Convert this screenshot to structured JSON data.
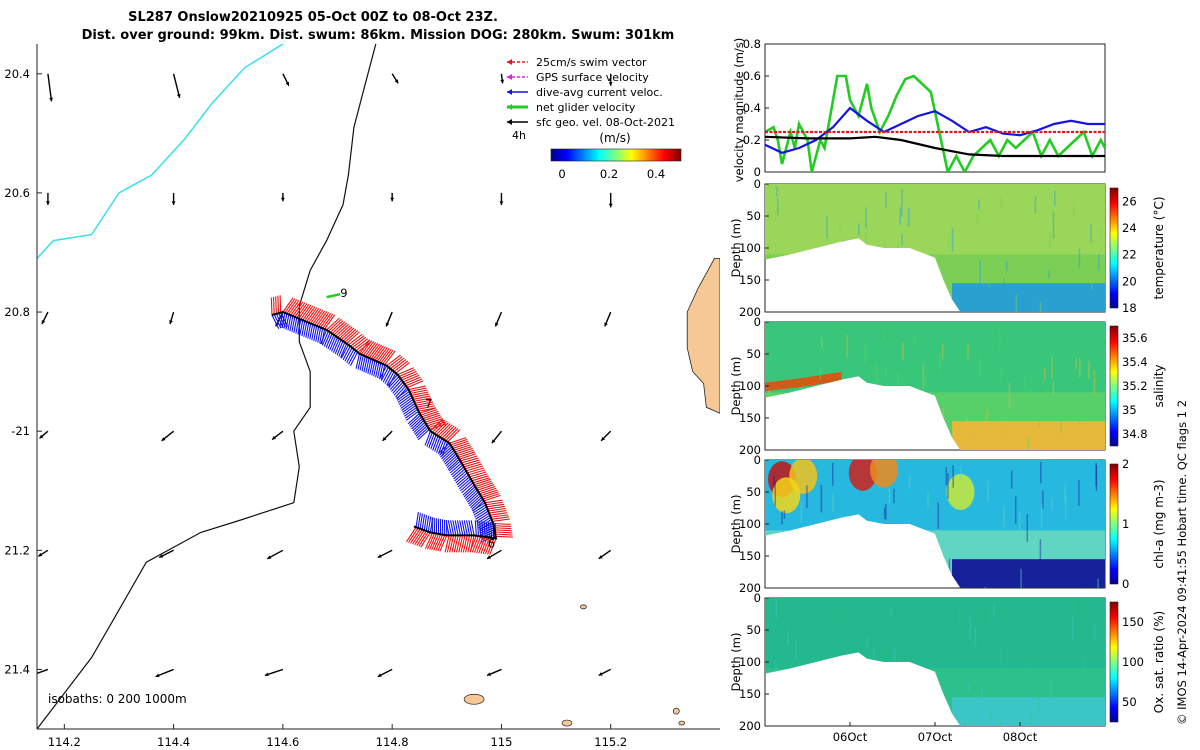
{
  "title": {
    "line1": "SL287 Onslow20210925 05-Oct 00Z to 08-Oct 23Z.",
    "line2": "Dist. over ground: 99km. Dist. swum: 86km. Mission DOG: 280km. Swum: 301km"
  },
  "credit": "© IMOS 14-Apr-2024 09:41:55 Hobart time. QC flags 1  2",
  "chart_data": [
    {
      "type": "scatter",
      "name": "track map",
      "xlim": [
        114.15,
        115.4
      ],
      "ylim": [
        -21.5,
        -20.35
      ],
      "xticks": [
        114.2,
        114.4,
        114.6,
        114.8,
        115,
        115.2
      ],
      "xtick_labels": [
        "114.2",
        "114.4",
        "114.6",
        "114.8",
        "115",
        "115.2"
      ],
      "yticks": [
        -20.4,
        -20.6,
        -20.8,
        -21,
        -21.2,
        -21.4
      ],
      "ytick_labels": [
        "20.4",
        "20.6",
        "20.8",
        "-21",
        "21.2",
        "21.4"
      ],
      "legend": {
        "items": [
          {
            "label": "25cm/s swim vector",
            "color": "#e8141c"
          },
          {
            "label": "GPS surface velocity",
            "color": "#e022e0"
          },
          {
            "label": "dive-avg current veloc.",
            "color": "#1414e6"
          },
          {
            "label": "net glider velocity",
            "color": "#22cc22"
          },
          {
            "label": "sfc geo. vel. 08-Oct-2021",
            "color": "#000000"
          }
        ],
        "note": "4h",
        "colorbar_label": "(m/s)",
        "colorbar_ticks": [
          "0",
          "0.2",
          "0.4"
        ]
      },
      "isobath_note": "isobaths: 0   200  1000m",
      "track": [
        [
          114.58,
          -20.805
        ],
        [
          114.6,
          -20.8
        ],
        [
          114.64,
          -20.815
        ],
        [
          114.68,
          -20.83
        ],
        [
          114.72,
          -20.855
        ],
        [
          114.74,
          -20.87
        ],
        [
          114.765,
          -20.88
        ],
        [
          114.79,
          -20.89
        ],
        [
          114.81,
          -20.905
        ],
        [
          114.83,
          -20.93
        ],
        [
          114.85,
          -20.97
        ],
        [
          114.87,
          -21.0
        ],
        [
          114.905,
          -21.02
        ],
        [
          114.925,
          -21.05
        ],
        [
          114.95,
          -21.09
        ],
        [
          114.97,
          -21.12
        ],
        [
          114.985,
          -21.155
        ],
        [
          114.99,
          -21.18
        ],
        [
          114.95,
          -21.175
        ],
        [
          114.9,
          -21.175
        ],
        [
          114.87,
          -21.17
        ],
        [
          114.84,
          -21.16
        ]
      ],
      "track_labels": [
        {
          "text": "9",
          "lon": 114.705,
          "lat": -20.775
        },
        {
          "text": "7",
          "lon": 114.86,
          "lat": -20.96
        },
        {
          "text": "6",
          "lon": 114.975,
          "lat": -21.195
        }
      ],
      "grid_vectors": [
        {
          "lon": 114.17,
          "lat": -20.4,
          "u": 0.03,
          "v": -0.23
        },
        {
          "lon": 114.4,
          "lat": -20.4,
          "u": 0.05,
          "v": -0.2
        },
        {
          "lon": 114.6,
          "lat": -20.4,
          "u": 0.05,
          "v": -0.1
        },
        {
          "lon": 114.8,
          "lat": -20.4,
          "u": 0.05,
          "v": -0.08
        },
        {
          "lon": 115,
          "lat": -20.4,
          "u": 0.01,
          "v": -0.08
        },
        {
          "lon": 115.2,
          "lat": -20.4,
          "u": 0.0,
          "v": -0.1
        },
        {
          "lon": 114.17,
          "lat": -20.6,
          "u": 0.0,
          "v": -0.1
        },
        {
          "lon": 114.4,
          "lat": -20.6,
          "u": 0.0,
          "v": -0.1
        },
        {
          "lon": 114.6,
          "lat": -20.6,
          "u": 0.0,
          "v": -0.07
        },
        {
          "lon": 114.8,
          "lat": -20.6,
          "u": 0.0,
          "v": -0.07
        },
        {
          "lon": 115,
          "lat": -20.6,
          "u": 0.0,
          "v": -0.1
        },
        {
          "lon": 115.2,
          "lat": -20.6,
          "u": 0.0,
          "v": -0.12
        },
        {
          "lon": 114.17,
          "lat": -20.8,
          "u": -0.05,
          "v": -0.1
        },
        {
          "lon": 114.4,
          "lat": -20.8,
          "u": -0.03,
          "v": -0.1
        },
        {
          "lon": 114.6,
          "lat": -20.8,
          "u": -0.06,
          "v": -0.12
        },
        {
          "lon": 114.8,
          "lat": -20.8,
          "u": -0.05,
          "v": -0.12
        },
        {
          "lon": 115,
          "lat": -20.8,
          "u": -0.05,
          "v": -0.12
        },
        {
          "lon": 115.2,
          "lat": -20.8,
          "u": -0.05,
          "v": -0.12
        },
        {
          "lon": 114.17,
          "lat": -21.0,
          "u": -0.07,
          "v": -0.06
        },
        {
          "lon": 114.4,
          "lat": -21.0,
          "u": -0.1,
          "v": -0.08
        },
        {
          "lon": 114.6,
          "lat": -21.0,
          "u": -0.09,
          "v": -0.07
        },
        {
          "lon": 114.8,
          "lat": -21.0,
          "u": -0.08,
          "v": -0.08
        },
        {
          "lon": 115,
          "lat": -21.0,
          "u": -0.08,
          "v": -0.1
        },
        {
          "lon": 115.2,
          "lat": -21.0,
          "u": -0.08,
          "v": -0.08
        },
        {
          "lon": 114.17,
          "lat": -21.2,
          "u": -0.08,
          "v": -0.05
        },
        {
          "lon": 114.4,
          "lat": -21.2,
          "u": -0.12,
          "v": -0.06
        },
        {
          "lon": 114.6,
          "lat": -21.2,
          "u": -0.13,
          "v": -0.07
        },
        {
          "lon": 114.8,
          "lat": -21.2,
          "u": -0.12,
          "v": -0.06
        },
        {
          "lon": 115,
          "lat": -21.2,
          "u": -0.12,
          "v": -0.07
        },
        {
          "lon": 115.2,
          "lat": -21.2,
          "u": -0.1,
          "v": -0.07
        },
        {
          "lon": 114.17,
          "lat": -21.4,
          "u": -0.14,
          "v": -0.05
        },
        {
          "lon": 114.4,
          "lat": -21.4,
          "u": -0.15,
          "v": -0.06
        },
        {
          "lon": 114.6,
          "lat": -21.4,
          "u": -0.15,
          "v": -0.05
        },
        {
          "lon": 114.8,
          "lat": -21.4,
          "u": -0.12,
          "v": -0.06
        },
        {
          "lon": 115,
          "lat": -21.4,
          "u": -0.12,
          "v": -0.05
        },
        {
          "lon": 115.2,
          "lat": -21.4,
          "u": -0.1,
          "v": -0.05
        }
      ],
      "isobath_0": [
        [
          115.34,
          -20.8
        ],
        [
          115.36,
          -20.76
        ],
        [
          115.39,
          -20.71
        ],
        [
          115.4,
          -20.71
        ],
        [
          115.4,
          -20.97
        ],
        [
          115.375,
          -20.96
        ],
        [
          115.37,
          -20.92
        ],
        [
          115.35,
          -20.9
        ],
        [
          115.34,
          -20.86
        ]
      ],
      "isobath_200": [
        [
          114.15,
          -20.71
        ],
        [
          114.18,
          -20.68
        ],
        [
          114.25,
          -20.67
        ],
        [
          114.3,
          -20.6
        ],
        [
          114.36,
          -20.57
        ],
        [
          114.42,
          -20.51
        ],
        [
          114.47,
          -20.45
        ],
        [
          114.53,
          -20.39
        ],
        [
          114.6,
          -20.35
        ]
      ],
      "isobath_1000": [
        [
          114.77,
          -20.35
        ],
        [
          114.75,
          -20.42
        ],
        [
          114.73,
          -20.49
        ],
        [
          114.72,
          -20.57
        ],
        [
          114.71,
          -20.62
        ],
        [
          114.68,
          -20.68
        ],
        [
          114.65,
          -20.73
        ],
        [
          114.63,
          -20.79
        ],
        [
          114.63,
          -20.85
        ],
        [
          114.65,
          -20.9
        ],
        [
          114.65,
          -20.96
        ],
        [
          114.62,
          -21.0
        ],
        [
          114.63,
          -21.06
        ],
        [
          114.62,
          -21.12
        ],
        [
          114.52,
          -21.15
        ],
        [
          114.45,
          -21.17
        ],
        [
          114.35,
          -21.22
        ],
        [
          114.3,
          -21.3
        ],
        [
          114.25,
          -21.38
        ],
        [
          114.2,
          -21.44
        ],
        [
          114.15,
          -21.5
        ]
      ]
    },
    {
      "type": "line",
      "name": "velocity magnitude",
      "ylabel": "velocity magnitude (m/s)",
      "ylim": [
        0,
        0.8
      ],
      "yticks": [
        0,
        0.2,
        0.4,
        0.6,
        0.8
      ],
      "xlim": [
        0,
        4
      ],
      "series": [
        {
          "name": "net glider velocity",
          "color": "#22cc22",
          "x": [
            0,
            0.1,
            0.15,
            0.2,
            0.3,
            0.35,
            0.4,
            0.5,
            0.55,
            0.65,
            0.7,
            0.75,
            0.85,
            0.95,
            1.0,
            1.1,
            1.2,
            1.25,
            1.35,
            1.45,
            1.55,
            1.65,
            1.75,
            1.85,
            1.95,
            2.05,
            2.15,
            2.25,
            2.3,
            2.35,
            2.45,
            2.55,
            2.65,
            2.75,
            2.85,
            2.95,
            3.05,
            3.15,
            3.25,
            3.35,
            3.45,
            3.55,
            3.65,
            3.75,
            3.85,
            3.95,
            4.0
          ],
          "y": [
            0.25,
            0.28,
            0.2,
            0.05,
            0.25,
            0.15,
            0.3,
            0.2,
            0.0,
            0.2,
            0.15,
            0.3,
            0.6,
            0.6,
            0.45,
            0.35,
            0.55,
            0.4,
            0.25,
            0.35,
            0.48,
            0.58,
            0.6,
            0.55,
            0.5,
            0.25,
            0.0,
            0.1,
            0.05,
            0.0,
            0.1,
            0.15,
            0.2,
            0.1,
            0.2,
            0.15,
            0.2,
            0.25,
            0.1,
            0.2,
            0.1,
            0.15,
            0.2,
            0.25,
            0.1,
            0.2,
            0.15
          ]
        },
        {
          "name": "dive-avg current veloc.",
          "color": "#1414e6",
          "x": [
            0,
            0.2,
            0.4,
            0.6,
            0.8,
            1.0,
            1.2,
            1.4,
            1.6,
            1.8,
            2.0,
            2.2,
            2.4,
            2.6,
            2.8,
            3.0,
            3.2,
            3.4,
            3.6,
            3.8,
            4.0
          ],
          "y": [
            0.17,
            0.12,
            0.15,
            0.2,
            0.28,
            0.4,
            0.32,
            0.25,
            0.3,
            0.35,
            0.38,
            0.32,
            0.25,
            0.28,
            0.24,
            0.23,
            0.26,
            0.3,
            0.32,
            0.3,
            0.3
          ]
        },
        {
          "name": "25cm/s swim vector",
          "color": "#e8141c",
          "x": [
            0,
            4
          ],
          "y": [
            0.25,
            0.25
          ]
        },
        {
          "name": "sfc geo. vel. 08-Oct-2021",
          "color": "#000000",
          "x": [
            0,
            0.5,
            1.0,
            1.3,
            1.6,
            2.0,
            2.4,
            2.8,
            3.2,
            3.6,
            4.0
          ],
          "y": [
            0.22,
            0.21,
            0.21,
            0.22,
            0.2,
            0.15,
            0.11,
            0.1,
            0.1,
            0.1,
            0.1
          ]
        }
      ]
    },
    {
      "type": "heatmap",
      "name": "temperature section",
      "ylabel": "Depth (m)",
      "ylim": [
        200,
        0
      ],
      "yticks": [
        0,
        50,
        100,
        150,
        200
      ],
      "colorbar_label": "temperature (°C)",
      "cmin": 18,
      "cmax": 27,
      "colorbar_ticks": [
        18,
        20,
        22,
        24,
        26
      ],
      "bottom_profile": {
        "x": [
          0,
          0.3,
          0.6,
          0.9,
          1.1,
          1.2,
          1.4,
          1.7,
          2.0,
          2.1,
          2.2,
          2.3,
          4.0
        ],
        "depth": [
          118,
          110,
          100,
          90,
          85,
          95,
          100,
          100,
          115,
          150,
          180,
          200,
          200
        ]
      },
      "summary": "near-uniform 22-23 °C in the upper 100 m, cooler 19-21 °C below 150 m"
    },
    {
      "type": "heatmap",
      "name": "salinity section",
      "ylabel": "Depth (m)",
      "ylim": [
        200,
        0
      ],
      "yticks": [
        0,
        50,
        100,
        150,
        200
      ],
      "colorbar_label": "salinity",
      "cmin": 34.7,
      "cmax": 35.7,
      "colorbar_ticks": [
        34.8,
        35,
        35.2,
        35.4,
        35.6
      ],
      "summary": "35.2-35.4 in mixed layer, saltier 35.5-35.6 near 100 m on the shelf"
    },
    {
      "type": "heatmap",
      "name": "chl-a section",
      "ylabel": "Depth (m)",
      "ylim": [
        200,
        0
      ],
      "yticks": [
        0,
        50,
        100,
        150,
        200
      ],
      "colorbar_label": "chl-a (mg m-3)",
      "cmin": 0,
      "cmax": 2,
      "colorbar_ticks": [
        0,
        1,
        2
      ],
      "summary": "high chl-a 1.5-2 patches in upper 60 m early in record, low below 150 m"
    },
    {
      "type": "heatmap",
      "name": "oxygen section",
      "ylabel": "Depth (m)",
      "ylim": [
        200,
        0
      ],
      "yticks": [
        0,
        50,
        100,
        150,
        200
      ],
      "colorbar_label": "Ox. sat. ratio (%)",
      "cmin": 25,
      "cmax": 175,
      "colorbar_ticks": [
        50,
        100,
        150
      ],
      "xtick_labels": [
        "06Oct",
        "07Oct",
        "08Oct"
      ],
      "xticks": [
        1,
        2,
        3
      ],
      "summary": "near 100 % above 100 m, 70-80 % at depth"
    }
  ]
}
